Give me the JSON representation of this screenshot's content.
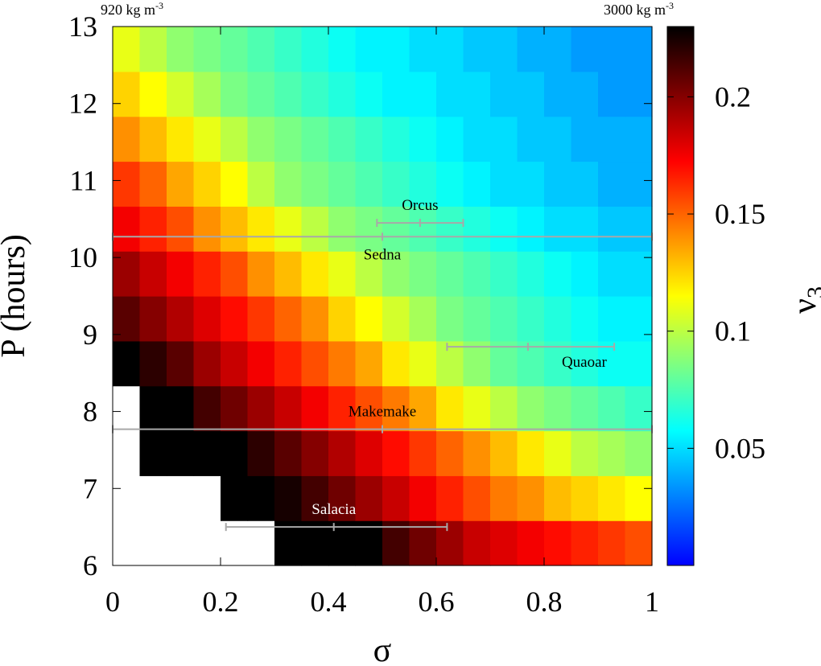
{
  "chart_data": {
    "type": "heatmap",
    "title": "",
    "xlabel": "σ",
    "ylabel": "P (hours)",
    "xlim": [
      0,
      1
    ],
    "ylim": [
      6,
      13
    ],
    "x_ticks": [
      "0",
      "0.2",
      "0.4",
      "0.6",
      "0.8",
      "1"
    ],
    "y_ticks": [
      "6",
      "7",
      "8",
      "9",
      "10",
      "11",
      "12",
      "13"
    ],
    "colorbar": {
      "label": "ν",
      "label_subscript": "3",
      "range": [
        0,
        0.23
      ],
      "ticks": [
        "0.05",
        "0.1",
        "0.15",
        "0.2"
      ],
      "colormap": [
        "#0000ff",
        "#00ffff",
        "#ffff00",
        "#ff0000",
        "#000000"
      ]
    },
    "corner_labels": {
      "left": "920 kg m",
      "left_sup": "-3",
      "right": "3000 kg m",
      "right_sup": "-3"
    },
    "grid": {
      "sigma_bins": 20,
      "period_bins": 12,
      "period_range": [
        6,
        13
      ],
      "undefined_color": "#ffffff",
      "cell_values_note": "values are v3 (0 to 0.23); null = blank region",
      "rows_from_bottom": [
        [
          null,
          null,
          null,
          null,
          null,
          null,
          0.23,
          0.23,
          0.23,
          0.23,
          0.215,
          0.205,
          0.195,
          0.185,
          0.18,
          0.175,
          0.17,
          0.165,
          0.16,
          0.155
        ],
        [
          null,
          null,
          null,
          null,
          0.23,
          0.23,
          0.225,
          0.215,
          0.205,
          0.195,
          0.185,
          0.175,
          0.165,
          0.155,
          0.145,
          0.14,
          0.13,
          0.125,
          0.12,
          0.115
        ],
        [
          null,
          0.23,
          0.23,
          0.23,
          0.23,
          0.22,
          0.21,
          0.2,
          0.19,
          0.18,
          0.17,
          0.16,
          0.15,
          0.14,
          0.13,
          0.12,
          0.11,
          0.1,
          0.095,
          0.09
        ],
        [
          null,
          0.23,
          0.23,
          0.215,
          0.205,
          0.195,
          0.185,
          0.175,
          0.165,
          0.155,
          0.145,
          0.135,
          0.12,
          0.11,
          0.1,
          0.09,
          0.085,
          0.08,
          0.075,
          0.07
        ],
        [
          0.23,
          0.22,
          0.21,
          0.195,
          0.185,
          0.175,
          0.165,
          0.155,
          0.145,
          0.135,
          0.12,
          0.11,
          0.1,
          0.09,
          0.08,
          0.075,
          0.07,
          0.065,
          0.06,
          0.06
        ],
        [
          0.21,
          0.2,
          0.19,
          0.18,
          0.17,
          0.16,
          0.15,
          0.14,
          0.125,
          0.115,
          0.105,
          0.095,
          0.085,
          0.08,
          0.075,
          0.07,
          0.065,
          0.06,
          0.055,
          0.055
        ],
        [
          0.195,
          0.185,
          0.175,
          0.165,
          0.155,
          0.14,
          0.13,
          0.12,
          0.11,
          0.1,
          0.09,
          0.085,
          0.08,
          0.075,
          0.07,
          0.065,
          0.06,
          0.055,
          0.05,
          0.05
        ],
        [
          0.175,
          0.165,
          0.155,
          0.14,
          0.13,
          0.12,
          0.11,
          0.1,
          0.09,
          0.085,
          0.08,
          0.075,
          0.07,
          0.065,
          0.06,
          0.055,
          0.05,
          0.05,
          0.045,
          0.045
        ],
        [
          0.16,
          0.15,
          0.135,
          0.125,
          0.115,
          0.1,
          0.09,
          0.085,
          0.08,
          0.075,
          0.07,
          0.065,
          0.06,
          0.055,
          0.05,
          0.05,
          0.045,
          0.045,
          0.04,
          0.04
        ],
        [
          0.14,
          0.13,
          0.12,
          0.11,
          0.1,
          0.09,
          0.085,
          0.08,
          0.075,
          0.07,
          0.065,
          0.06,
          0.055,
          0.05,
          0.05,
          0.045,
          0.045,
          0.04,
          0.04,
          0.04
        ],
        [
          0.125,
          0.115,
          0.105,
          0.095,
          0.085,
          0.08,
          0.075,
          0.07,
          0.065,
          0.06,
          0.055,
          0.055,
          0.05,
          0.05,
          0.045,
          0.045,
          0.04,
          0.04,
          0.035,
          0.035
        ],
        [
          0.11,
          0.1,
          0.09,
          0.085,
          0.08,
          0.075,
          0.07,
          0.065,
          0.06,
          0.055,
          0.055,
          0.05,
          0.05,
          0.045,
          0.045,
          0.04,
          0.04,
          0.035,
          0.035,
          0.035
        ]
      ]
    },
    "annotations": [
      {
        "name": "Orcus",
        "sigma": 0.57,
        "sigma_lo": 0.49,
        "sigma_hi": 0.65,
        "P": 10.45,
        "label_pos": "above"
      },
      {
        "name": "Sedna",
        "sigma": 0.5,
        "sigma_lo": 0.0,
        "sigma_hi": 1.0,
        "P": 10.27,
        "label_pos": "below"
      },
      {
        "name": "Quaoar",
        "sigma": 0.77,
        "sigma_lo": 0.62,
        "sigma_hi": 0.93,
        "P": 8.84,
        "label_pos": "below-right"
      },
      {
        "name": "Makemake",
        "sigma": 0.5,
        "sigma_lo": 0.0,
        "sigma_hi": 1.0,
        "P": 7.77,
        "label_pos": "above"
      },
      {
        "name": "Salacia",
        "sigma": 0.41,
        "sigma_lo": 0.21,
        "sigma_hi": 0.62,
        "P": 6.5,
        "label_pos": "above"
      }
    ],
    "annotation_colors": {
      "bar": "#a8a8a8",
      "label_dark": "#000000",
      "label_light": "#ffffff"
    }
  }
}
